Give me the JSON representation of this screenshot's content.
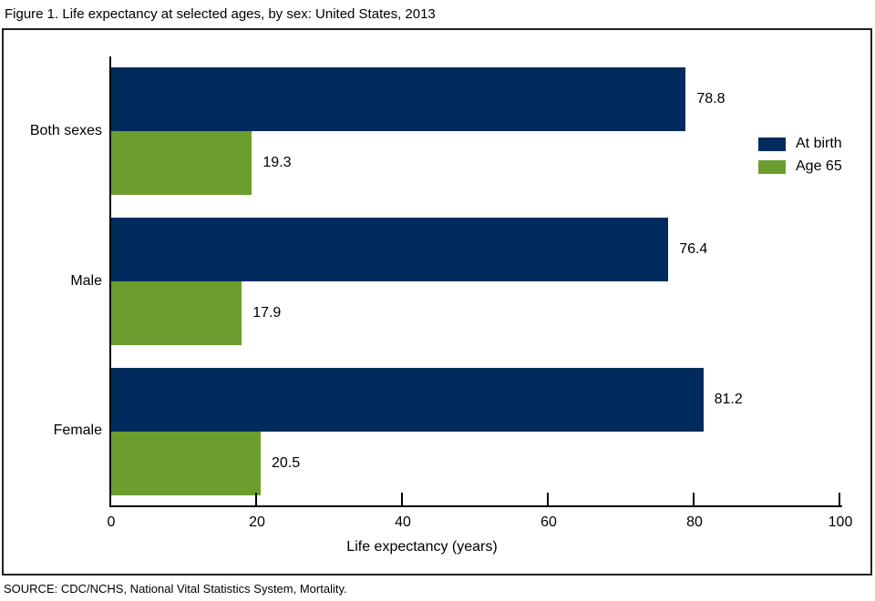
{
  "title": "Figure 1. Life expectancy at selected ages, by sex: United States, 2013",
  "source": "SOURCE: CDC/NCHS, National Vital Statistics System, Mortality.",
  "colors": {
    "at_birth": "#002b5c",
    "age_65": "#6c9e2f",
    "axis": "#000000",
    "frame_border": "#222222"
  },
  "chart_data": {
    "type": "bar",
    "orientation": "horizontal",
    "title": "Figure 1. Life expectancy at selected ages, by sex: United States, 2013",
    "categories": [
      "Both sexes",
      "Male",
      "Female"
    ],
    "series": [
      {
        "name": "At birth",
        "color": "#002b5c",
        "values": [
          78.8,
          76.4,
          81.2
        ]
      },
      {
        "name": "Age 65",
        "color": "#6c9e2f",
        "values": [
          19.3,
          17.9,
          20.5
        ]
      }
    ],
    "value_labels": [
      [
        "78.8",
        "76.4",
        "81.2"
      ],
      [
        "19.3",
        "17.9",
        "20.5"
      ]
    ],
    "xlabel": "Life expectancy (years)",
    "xlim": [
      0,
      100
    ],
    "xticks": [
      "0",
      "20",
      "40",
      "60",
      "80",
      "100"
    ],
    "grid": "off",
    "legend_position": "right-inside",
    "data_labels": true
  }
}
